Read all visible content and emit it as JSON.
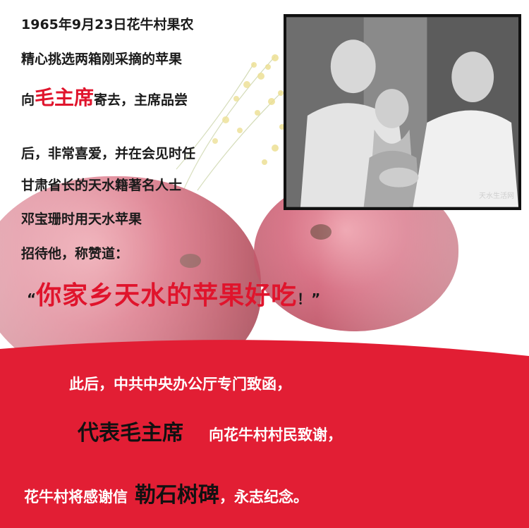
{
  "top_lines": [
    "1965年9月23日花牛村果农",
    "精心挑选两箱刚采摘的苹果"
  ],
  "line3": {
    "prefix": "向",
    "highlight": "毛主席",
    "suffix": "寄去，主席品尝"
  },
  "middle_lines": [
    "后，非常喜爱，并在会见时任",
    "甘肃省长的天水籍著名人士",
    "邓宝珊时用天水苹果",
    "招待他，称赞道："
  ],
  "quote": {
    "open": "“",
    "text": "你家乡天水的苹果好吃",
    "close": "！”"
  },
  "photo": {
    "watermark": "天水生活网"
  },
  "bottom": {
    "line1": "此后，中共中央办公厅专门致函，",
    "line2_highlight": "代表毛主席",
    "line2_suffix": "向花牛村村民致谢，",
    "line3_prefix": "花牛村将感谢信",
    "line3_highlight": "勒石树碑",
    "line3_suffix": "，永志纪念。"
  },
  "colors": {
    "accent_red": "#e0142c",
    "band_red": "#e21e34"
  }
}
